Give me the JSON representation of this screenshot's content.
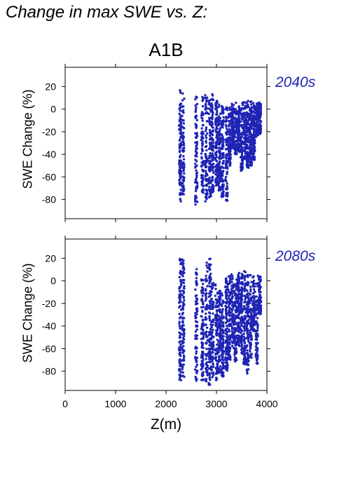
{
  "page": {
    "title": "Change in max SWE vs. Z:",
    "scenario": "A1B"
  },
  "chart_data": [
    {
      "type": "scatter",
      "title": "2040s",
      "scenario": "A1B",
      "xlabel": "Z(m)",
      "ylabel": "SWE Change (%)",
      "xlim": [
        0,
        4000
      ],
      "ylim": [
        -97,
        37
      ],
      "xticks": [
        0,
        1000,
        2000,
        3000,
        4000
      ],
      "yticks": [
        20,
        0,
        -20,
        -40,
        -60,
        -80
      ],
      "grid": false,
      "legend": "none",
      "color": "#1f24b4",
      "elevation_bands": [
        {
          "z": 2280,
          "ymin": -82,
          "ymax": 19
        },
        {
          "z": 2340,
          "ymin": -76,
          "ymax": 15
        },
        {
          "z": 2600,
          "ymin": -85,
          "ymax": 14
        },
        {
          "z": 2720,
          "ymin": -74,
          "ymax": 12
        },
        {
          "z": 2800,
          "ymin": -84,
          "ymax": 13
        },
        {
          "z": 2870,
          "ymin": -80,
          "ymax": 12
        },
        {
          "z": 2920,
          "ymin": -76,
          "ymax": 14
        },
        {
          "z": 3000,
          "ymin": -68,
          "ymax": 8
        },
        {
          "z": 3060,
          "ymin": -72,
          "ymax": 5
        },
        {
          "z": 3120,
          "ymin": -78,
          "ymax": 3
        },
        {
          "z": 3200,
          "ymin": -82,
          "ymax": 4
        },
        {
          "z": 3260,
          "ymin": -50,
          "ymax": 3
        },
        {
          "z": 3320,
          "ymin": -35,
          "ymax": 5
        },
        {
          "z": 3380,
          "ymin": -40,
          "ymax": 6
        },
        {
          "z": 3440,
          "ymin": -38,
          "ymax": 4
        },
        {
          "z": 3500,
          "ymin": -55,
          "ymax": 6
        },
        {
          "z": 3560,
          "ymin": -45,
          "ymax": 9
        },
        {
          "z": 3620,
          "ymin": -52,
          "ymax": 8
        },
        {
          "z": 3680,
          "ymin": -50,
          "ymax": 7
        },
        {
          "z": 3740,
          "ymin": -45,
          "ymax": 6
        },
        {
          "z": 3800,
          "ymin": -25,
          "ymax": 6
        },
        {
          "z": 3860,
          "ymin": -22,
          "ymax": 6
        }
      ]
    },
    {
      "type": "scatter",
      "title": "2080s",
      "scenario": "A1B",
      "xlabel": "Z(m)",
      "ylabel": "SWE Change (%)",
      "xlim": [
        0,
        4000
      ],
      "ylim": [
        -97,
        37
      ],
      "xticks": [
        0,
        1000,
        2000,
        3000,
        4000
      ],
      "yticks": [
        20,
        0,
        -20,
        -40,
        -60,
        -80
      ],
      "grid": false,
      "legend": "none",
      "color": "#1f24b4",
      "elevation_bands": [
        {
          "z": 2280,
          "ymin": -88,
          "ymax": 21
        },
        {
          "z": 2340,
          "ymin": -86,
          "ymax": 20
        },
        {
          "z": 2600,
          "ymin": -90,
          "ymax": 13
        },
        {
          "z": 2720,
          "ymin": -88,
          "ymax": 2
        },
        {
          "z": 2800,
          "ymin": -90,
          "ymax": 18
        },
        {
          "z": 2870,
          "ymin": -92,
          "ymax": 21
        },
        {
          "z": 2920,
          "ymin": -86,
          "ymax": 0
        },
        {
          "z": 3000,
          "ymin": -88,
          "ymax": -3
        },
        {
          "z": 3060,
          "ymin": -82,
          "ymax": -8
        },
        {
          "z": 3120,
          "ymin": -85,
          "ymax": -10
        },
        {
          "z": 3200,
          "ymin": -80,
          "ymax": 4
        },
        {
          "z": 3260,
          "ymin": -70,
          "ymax": 6
        },
        {
          "z": 3320,
          "ymin": -60,
          "ymax": 8
        },
        {
          "z": 3380,
          "ymin": -72,
          "ymax": 4
        },
        {
          "z": 3440,
          "ymin": -60,
          "ymax": 7
        },
        {
          "z": 3500,
          "ymin": -65,
          "ymax": 8
        },
        {
          "z": 3560,
          "ymin": -75,
          "ymax": 12
        },
        {
          "z": 3620,
          "ymin": -82,
          "ymax": 8
        },
        {
          "z": 3680,
          "ymin": -70,
          "ymax": 7
        },
        {
          "z": 3740,
          "ymin": -45,
          "ymax": 6
        },
        {
          "z": 3800,
          "ymin": -74,
          "ymax": 5
        },
        {
          "z": 3860,
          "ymin": -30,
          "ymax": 4
        }
      ]
    }
  ]
}
